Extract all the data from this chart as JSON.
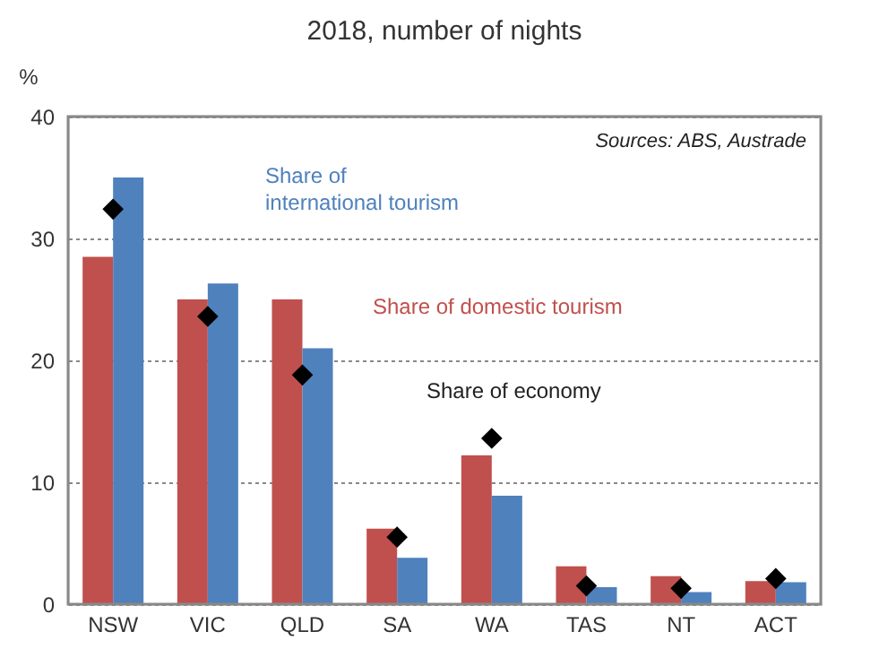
{
  "chart_data": {
    "type": "bar",
    "title": "2018, number of nights",
    "ylabel": "%",
    "categories": [
      "NSW",
      "VIC",
      "QLD",
      "SA",
      "WA",
      "TAS",
      "NT",
      "ACT"
    ],
    "series": [
      {
        "name": "Share of domestic tourism",
        "color": "#c0504d",
        "values": [
          28.5,
          25,
          25,
          6.2,
          12.2,
          3.1,
          2.3,
          1.9
        ]
      },
      {
        "name": "Share of international tourism",
        "color": "#4f81bd",
        "values": [
          35,
          26.3,
          21,
          3.8,
          8.9,
          1.4,
          1.0,
          1.8
        ]
      },
      {
        "name": "Share of economy",
        "type": "scatter",
        "marker": "diamond",
        "color": "#000000",
        "values": [
          32.4,
          23.6,
          18.8,
          5.5,
          13.6,
          1.5,
          1.3,
          2.1
        ]
      }
    ],
    "ylim": [
      0,
      40
    ],
    "yticks": [
      0,
      10,
      20,
      30,
      40
    ],
    "grid": "y",
    "legend": false,
    "annotations": [
      "Sources: ABS, Austrade"
    ]
  }
}
